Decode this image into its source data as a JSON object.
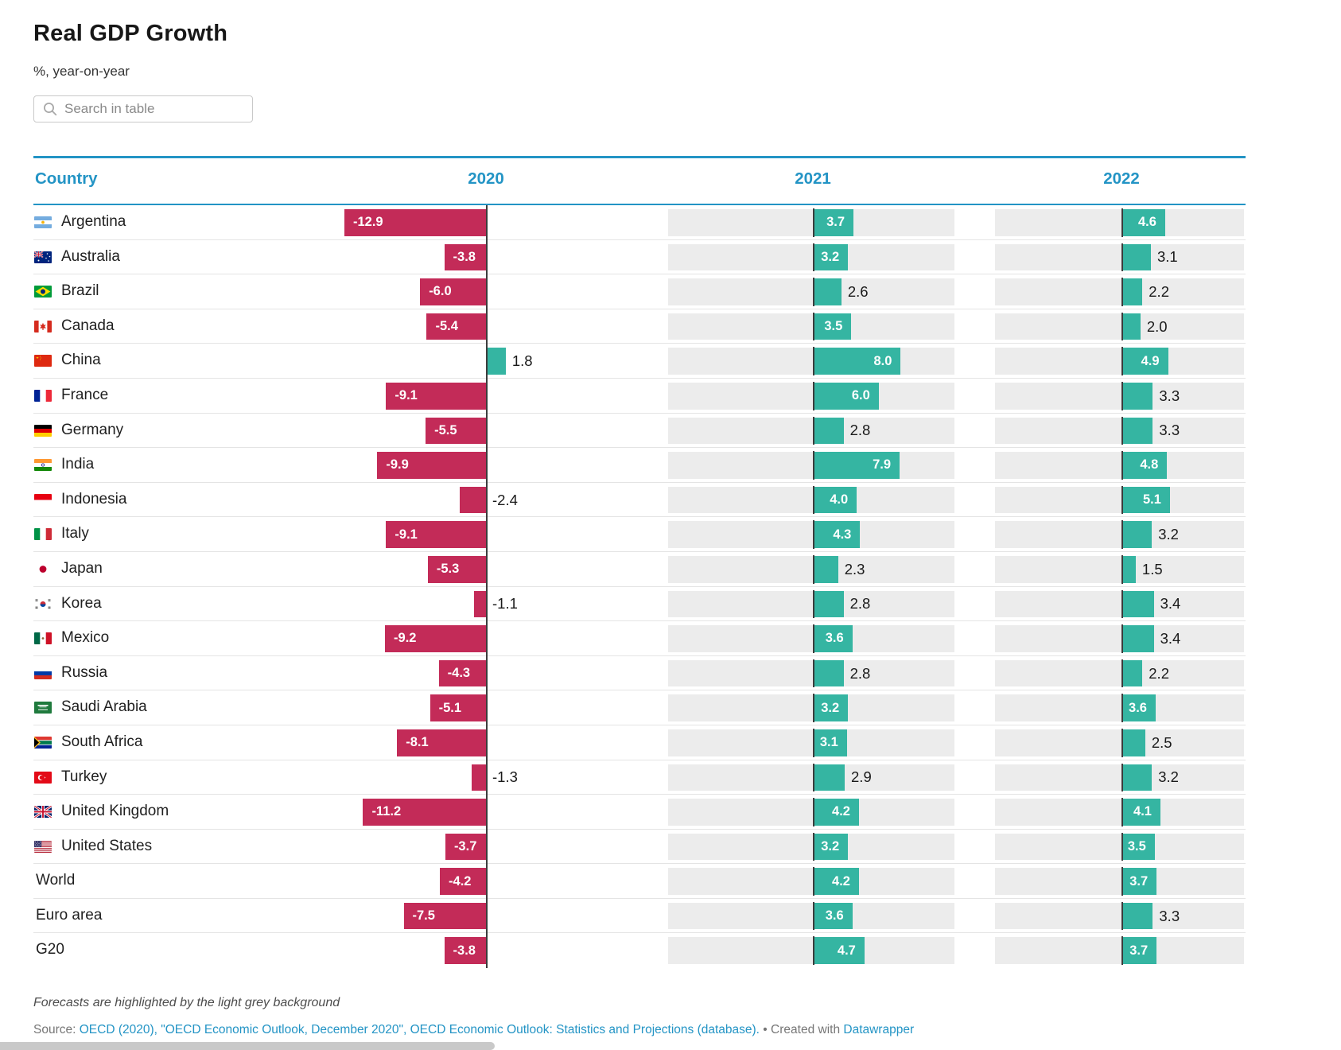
{
  "title": "Real GDP Growth",
  "subtitle": "%, year-on-year",
  "search": {
    "placeholder": "Search in table"
  },
  "columns": [
    "Country",
    "2020",
    "2021",
    "2022"
  ],
  "rows": [
    {
      "country": "Argentina",
      "flag": "argentina",
      "v2020": -12.9,
      "v2021": 3.7,
      "v2022": 4.6
    },
    {
      "country": "Australia",
      "flag": "australia",
      "v2020": -3.8,
      "v2021": 3.2,
      "v2022": 3.1
    },
    {
      "country": "Brazil",
      "flag": "brazil",
      "v2020": -6.0,
      "v2021": 2.6,
      "v2022": 2.2
    },
    {
      "country": "Canada",
      "flag": "canada",
      "v2020": -5.4,
      "v2021": 3.5,
      "v2022": 2.0
    },
    {
      "country": "China",
      "flag": "china",
      "v2020": 1.8,
      "v2021": 8.0,
      "v2022": 4.9
    },
    {
      "country": "France",
      "flag": "france",
      "v2020": -9.1,
      "v2021": 6.0,
      "v2022": 3.3
    },
    {
      "country": "Germany",
      "flag": "germany",
      "v2020": -5.5,
      "v2021": 2.8,
      "v2022": 3.3
    },
    {
      "country": "India",
      "flag": "india",
      "v2020": -9.9,
      "v2021": 7.9,
      "v2022": 4.8
    },
    {
      "country": "Indonesia",
      "flag": "indonesia",
      "v2020": -2.4,
      "v2021": 4.0,
      "v2022": 5.1
    },
    {
      "country": "Italy",
      "flag": "italy",
      "v2020": -9.1,
      "v2021": 4.3,
      "v2022": 3.2
    },
    {
      "country": "Japan",
      "flag": "japan",
      "v2020": -5.3,
      "v2021": 2.3,
      "v2022": 1.5
    },
    {
      "country": "Korea",
      "flag": "korea",
      "v2020": -1.1,
      "v2021": 2.8,
      "v2022": 3.4
    },
    {
      "country": "Mexico",
      "flag": "mexico",
      "v2020": -9.2,
      "v2021": 3.6,
      "v2022": 3.4
    },
    {
      "country": "Russia",
      "flag": "russia",
      "v2020": -4.3,
      "v2021": 2.8,
      "v2022": 2.2
    },
    {
      "country": "Saudi Arabia",
      "flag": "saudiarabia",
      "v2020": -5.1,
      "v2021": 3.2,
      "v2022": 3.6
    },
    {
      "country": "South Africa",
      "flag": "southafrica",
      "v2020": -8.1,
      "v2021": 3.1,
      "v2022": 2.5
    },
    {
      "country": "Turkey",
      "flag": "turkey",
      "v2020": -1.3,
      "v2021": 2.9,
      "v2022": 3.2
    },
    {
      "country": "United Kingdom",
      "flag": "uk",
      "v2020": -11.2,
      "v2021": 4.2,
      "v2022": 4.1
    },
    {
      "country": "United States",
      "flag": "us",
      "v2020": -3.7,
      "v2021": 3.2,
      "v2022": 3.5
    },
    {
      "country": "World",
      "flag": null,
      "v2020": -4.2,
      "v2021": 4.2,
      "v2022": 3.7
    },
    {
      "country": "Euro area",
      "flag": null,
      "v2020": -7.5,
      "v2021": 3.6,
      "v2022": 3.3
    },
    {
      "country": "G20",
      "flag": null,
      "v2020": -3.8,
      "v2021": 4.7,
      "v2022": 3.7
    }
  ],
  "footnote": "Forecasts are highlighted by the light grey background",
  "source": {
    "label": "Source:",
    "citation": "OECD (2020), \"OECD Economic Outlook, December 2020\", OECD Economic Outlook: Statistics and Projections (database).",
    "bullet": "•",
    "created": "Created with",
    "brand": "Datawrapper"
  },
  "colors": {
    "negative_bar": "#c32b58",
    "positive_bar": "#35b5a2",
    "header_blue": "#2394c5",
    "forecast_cell_grey": "#ececec",
    "axis_dark": "#3c3c3c"
  },
  "chart_data": {
    "type": "table",
    "title": "Real GDP Growth",
    "subtitle": "%, year-on-year",
    "categories": [
      "Argentina",
      "Australia",
      "Brazil",
      "Canada",
      "China",
      "France",
      "Germany",
      "India",
      "Indonesia",
      "Italy",
      "Japan",
      "Korea",
      "Mexico",
      "Russia",
      "Saudi Arabia",
      "South Africa",
      "Turkey",
      "United Kingdom",
      "United States",
      "World",
      "Euro area",
      "G20"
    ],
    "series": [
      {
        "name": "2020",
        "values": [
          -12.9,
          -3.8,
          -6.0,
          -5.4,
          1.8,
          -9.1,
          -5.5,
          -9.9,
          -2.4,
          -9.1,
          -5.3,
          -1.1,
          -9.2,
          -4.3,
          -5.1,
          -8.1,
          -1.3,
          -11.2,
          -3.7,
          -4.2,
          -7.5,
          -3.8
        ]
      },
      {
        "name": "2021",
        "values": [
          3.7,
          3.2,
          2.6,
          3.5,
          8.0,
          6.0,
          2.8,
          7.9,
          4.0,
          4.3,
          2.3,
          2.8,
          3.6,
          2.8,
          3.2,
          3.1,
          2.9,
          4.2,
          3.2,
          4.2,
          3.6,
          4.7
        ]
      },
      {
        "name": "2022",
        "values": [
          4.6,
          3.1,
          2.2,
          2.0,
          4.9,
          3.3,
          3.3,
          4.8,
          5.1,
          3.2,
          1.5,
          3.4,
          3.4,
          2.2,
          3.6,
          2.5,
          3.2,
          4.1,
          3.5,
          3.7,
          3.3,
          3.7
        ]
      }
    ],
    "note": "2021 and 2022 are forecasts (light grey background)",
    "bar_style": "horizontal bars from zero axis per year column; negative red, positive teal"
  }
}
